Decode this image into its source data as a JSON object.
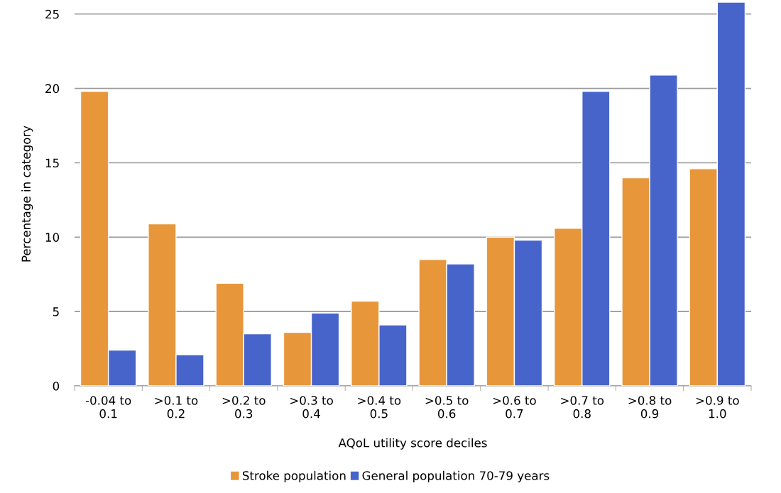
{
  "chart_data": {
    "type": "bar",
    "xlabel": "AQoL utility score deciles",
    "ylabel": "Percentage in category",
    "categories": [
      "-0.04 to\n0.1",
      ">0.1 to\n0.2",
      ">0.2 to\n0.3",
      ">0.3 to\n0.4",
      ">0.4 to\n0.5",
      ">0.5 to\n0.6",
      ">0.6 to\n0.7",
      ">0.7 to\n0.8",
      ">0.8 to\n0.9",
      ">0.9 to\n1.0"
    ],
    "series": [
      {
        "name": "Stroke population",
        "color": "#e8963a",
        "values": [
          19.8,
          10.9,
          6.9,
          3.6,
          5.7,
          8.5,
          10.0,
          10.6,
          14.0,
          14.6
        ]
      },
      {
        "name": "General population 70-79 years",
        "color": "#4764cb",
        "values": [
          2.4,
          2.1,
          3.5,
          4.9,
          4.1,
          8.2,
          9.8,
          19.8,
          20.9,
          25.8
        ]
      }
    ],
    "ylim": [
      0,
      25.8
    ],
    "yticks": [
      0,
      5,
      10,
      15,
      20,
      25
    ],
    "grid": "y",
    "legend": "bottom"
  }
}
